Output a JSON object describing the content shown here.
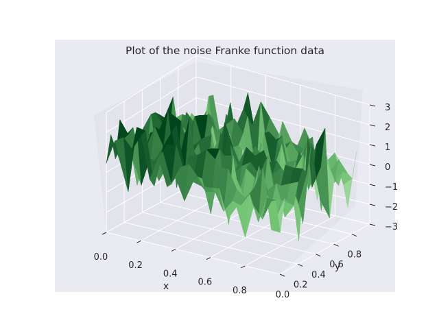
{
  "chart_data": {
    "type": "surface3d",
    "title": "Plot of the noise Franke function data",
    "xlabel": "x",
    "ylabel": "y",
    "zlabel": "",
    "xlim": [
      0,
      1
    ],
    "ylim": [
      0,
      1
    ],
    "zlim": [
      -3,
      3
    ],
    "x_ticks": [
      "0.0",
      "0.2",
      "0.4",
      "0.6",
      "0.8"
    ],
    "y_ticks": [
      "0.0",
      "0.2",
      "0.4",
      "0.6",
      "0.8"
    ],
    "z_ticks": [
      "−3",
      "−2",
      "−1",
      "0",
      "1",
      "2",
      "3"
    ],
    "colormap": "Greens",
    "grid": true,
    "grid_resolution": [
      20,
      20
    ],
    "noise_amplitude": 1.0
  },
  "colors": {
    "figure_bg": "#ffffff",
    "axes_bg": "#eaeaf2",
    "pane_bg": "#e3e3ec",
    "grid": "#ffffff",
    "cmap_light": "#f7fcf5",
    "cmap_dark": "#00441b"
  }
}
